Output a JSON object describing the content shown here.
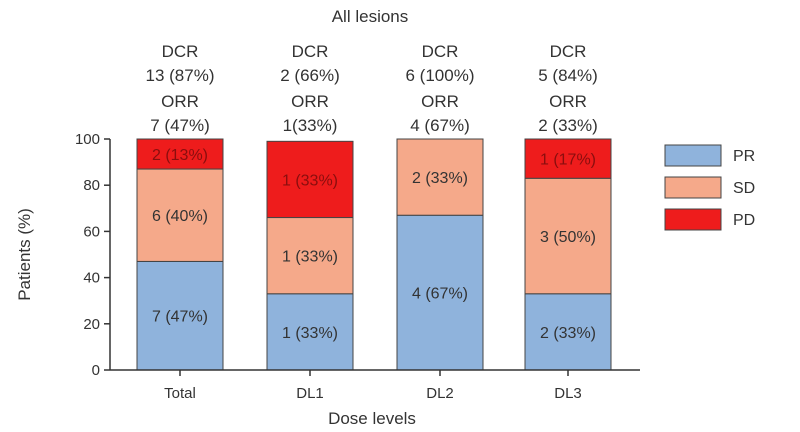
{
  "chart_data": {
    "type": "bar",
    "stacked": true,
    "title": "All lesions",
    "xlabel": "Dose levels",
    "ylabel": "Patients (%)",
    "ylim": [
      0,
      100
    ],
    "yticks": [
      0,
      20,
      40,
      60,
      80,
      100
    ],
    "categories": [
      "Total",
      "DL1",
      "DL2",
      "DL3"
    ],
    "series": [
      {
        "name": "PR",
        "color": "#8fb3dc",
        "values": [
          47,
          33,
          67,
          33
        ],
        "labels": [
          "7 (47%)",
          "1 (33%)",
          "4 (67%)",
          "2 (33%)"
        ]
      },
      {
        "name": "SD",
        "color": "#f5a98a",
        "values": [
          40,
          33,
          33,
          50
        ],
        "labels": [
          "6 (40%)",
          "1 (33%)",
          "2 (33%)",
          "3 (50%)"
        ]
      },
      {
        "name": "PD",
        "color": "#ee1c1c",
        "values": [
          13,
          33,
          0,
          17
        ],
        "labels": [
          "2 (13%)",
          "1 (33%)",
          "",
          "1 (17%)"
        ]
      }
    ],
    "annotations": [
      {
        "dcr_label": "DCR",
        "dcr_value": "13 (87%)",
        "orr_label": "ORR",
        "orr_value": "7 (47%)"
      },
      {
        "dcr_label": "DCR",
        "dcr_value": "2 (66%)",
        "orr_label": "ORR",
        "orr_value": "1(33%)"
      },
      {
        "dcr_label": "DCR",
        "dcr_value": "6 (100%)",
        "orr_label": "ORR",
        "orr_value": "4 (67%)"
      },
      {
        "dcr_label": "DCR",
        "dcr_value": "5 (84%)",
        "orr_label": "ORR",
        "orr_value": "2 (33%)"
      }
    ],
    "legend": {
      "placement": "right"
    }
  }
}
